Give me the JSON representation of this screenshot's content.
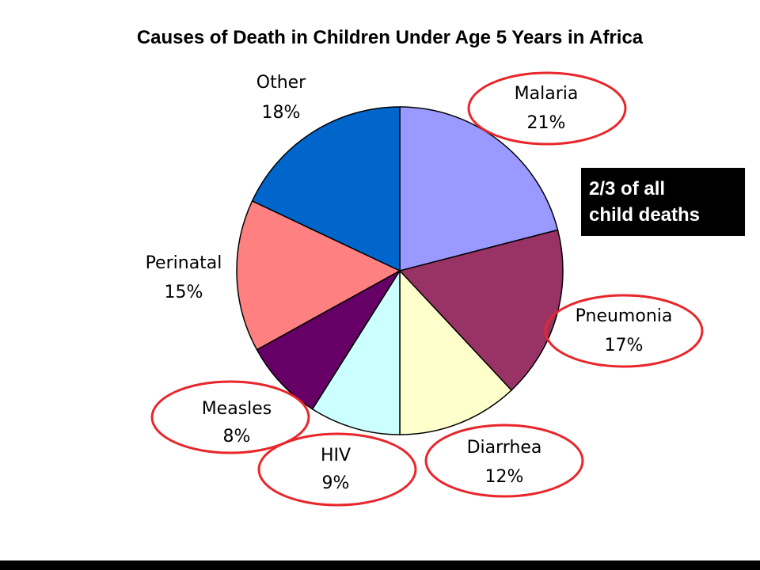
{
  "slide": {
    "title": "Causes of Death in Children Under Age 5 Years in Africa",
    "callout": {
      "line1": "2/3 of all",
      "line2": "child deaths"
    }
  },
  "colors": {
    "highlight_ring": "#e8262b",
    "callout_background": "#000000",
    "callout_text": "#ffffff"
  },
  "chart_data": {
    "type": "pie",
    "title": "Causes of Death in Children Under Age 5 Years in Africa",
    "start": "12 o'clock",
    "direction": "clockwise",
    "slices": [
      {
        "label": "Malaria",
        "value": 21,
        "display": "21%",
        "color": "#9999ff",
        "highlighted": true
      },
      {
        "label": "Pneumonia",
        "value": 17,
        "display": "17%",
        "color": "#993366",
        "highlighted": true
      },
      {
        "label": "Diarrhea",
        "value": 12,
        "display": "12%",
        "color": "#ffffcc",
        "highlighted": true
      },
      {
        "label": "HIV",
        "value": 9,
        "display": "9%",
        "color": "#ccffff",
        "highlighted": true
      },
      {
        "label": "Measles",
        "value": 8,
        "display": "8%",
        "color": "#660066",
        "highlighted": true
      },
      {
        "label": "Perinatal",
        "value": 15,
        "display": "15%",
        "color": "#ff8080",
        "highlighted": false
      },
      {
        "label": "Other",
        "value": 18,
        "display": "18%",
        "color": "#0066cc",
        "highlighted": false
      }
    ]
  }
}
